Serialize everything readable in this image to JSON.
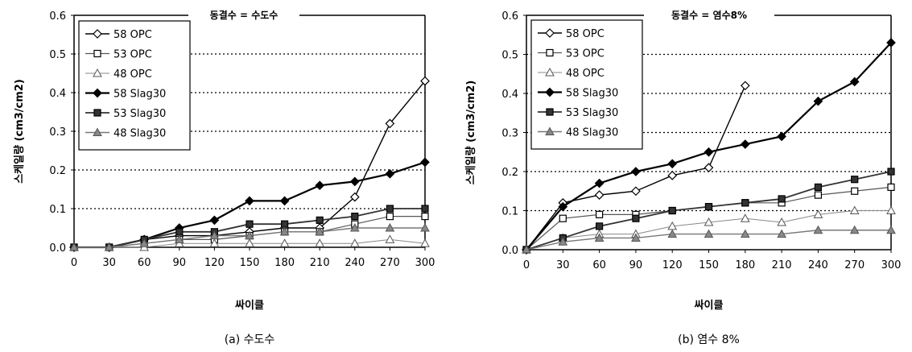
{
  "chart_data": [
    {
      "type": "line",
      "title": "동결수 = 수도수",
      "caption": "(a) 수도수",
      "xlabel": "싸이클",
      "ylabel": "스케일량 (cm3/cm2)",
      "x": [
        0,
        30,
        60,
        90,
        120,
        150,
        180,
        210,
        240,
        270,
        300
      ],
      "xticks": [
        "0",
        "30",
        "60",
        "90",
        "120",
        "150",
        "180",
        "210",
        "240",
        "270",
        "300"
      ],
      "ylim": [
        0,
        0.6
      ],
      "yticks": [
        "0.0",
        "0.1",
        "0.2",
        "0.3",
        "0.4",
        "0.5",
        "0.6"
      ],
      "grid": "horizontal dotted",
      "legend": "top-left",
      "series": [
        {
          "name": "58 OPC",
          "marker": "diamond-open",
          "values": [
            0.0,
            0.0,
            0.02,
            0.03,
            0.03,
            0.04,
            0.05,
            0.05,
            0.13,
            0.32,
            0.43
          ]
        },
        {
          "name": "53 OPC",
          "marker": "square-open",
          "values": [
            0.0,
            0.0,
            0.01,
            0.02,
            0.02,
            0.03,
            0.04,
            0.04,
            0.06,
            0.08,
            0.08
          ]
        },
        {
          "name": "48 OPC",
          "marker": "triangle-open",
          "values": [
            0.0,
            0.0,
            0.0,
            0.01,
            0.01,
            0.01,
            0.01,
            0.01,
            0.01,
            0.02,
            0.01
          ]
        },
        {
          "name": "58 Slag30",
          "marker": "diamond-filled",
          "values": [
            0.0,
            0.0,
            0.02,
            0.05,
            0.07,
            0.12,
            0.12,
            0.16,
            0.17,
            0.19,
            0.22
          ]
        },
        {
          "name": "53 Slag30",
          "marker": "square-filled",
          "values": [
            0.0,
            0.0,
            0.02,
            0.04,
            0.04,
            0.06,
            0.06,
            0.07,
            0.08,
            0.1,
            0.1
          ]
        },
        {
          "name": "48 Slag30",
          "marker": "triangle-filled",
          "values": [
            0.0,
            0.0,
            0.01,
            0.02,
            0.03,
            0.03,
            0.04,
            0.04,
            0.05,
            0.05,
            0.05
          ]
        }
      ]
    },
    {
      "type": "line",
      "title": "동결수 = 염수8%",
      "caption": "(b) 염수 8%",
      "xlabel": "싸이클",
      "ylabel": "스케일량 (cm3/cm2)",
      "x": [
        0,
        30,
        60,
        90,
        120,
        150,
        180,
        210,
        240,
        270,
        300
      ],
      "xticks": [
        "0",
        "30",
        "60",
        "90",
        "120",
        "150",
        "180",
        "210",
        "240",
        "270",
        "300"
      ],
      "ylim": [
        0,
        0.6
      ],
      "yticks": [
        "0.0",
        "0.1",
        "0.2",
        "0.3",
        "0.4",
        "0.5",
        "0.6"
      ],
      "grid": "horizontal dotted",
      "legend": "top-left",
      "series": [
        {
          "name": "58 OPC",
          "marker": "diamond-open",
          "values": [
            0.0,
            0.12,
            0.14,
            0.15,
            0.19,
            0.21,
            0.42,
            null,
            null,
            null,
            null
          ]
        },
        {
          "name": "53 OPC",
          "marker": "square-open",
          "values": [
            0.0,
            0.08,
            0.09,
            0.09,
            0.1,
            0.11,
            0.12,
            0.12,
            0.14,
            0.15,
            0.16
          ]
        },
        {
          "name": "48 OPC",
          "marker": "triangle-open",
          "values": [
            0.0,
            0.03,
            0.04,
            0.04,
            0.06,
            0.07,
            0.08,
            0.07,
            0.09,
            0.1,
            0.1
          ]
        },
        {
          "name": "58 Slag30",
          "marker": "diamond-filled",
          "values": [
            0.0,
            0.11,
            0.17,
            0.2,
            0.22,
            0.25,
            0.27,
            0.29,
            0.38,
            0.43,
            0.53
          ]
        },
        {
          "name": "53 Slag30",
          "marker": "square-filled",
          "values": [
            0.0,
            0.03,
            0.06,
            0.08,
            0.1,
            0.11,
            0.12,
            0.13,
            0.16,
            0.18,
            0.2
          ]
        },
        {
          "name": "48 Slag30",
          "marker": "triangle-filled",
          "values": [
            0.0,
            0.02,
            0.03,
            0.03,
            0.04,
            0.04,
            0.04,
            0.04,
            0.05,
            0.05,
            0.05
          ]
        }
      ]
    }
  ]
}
